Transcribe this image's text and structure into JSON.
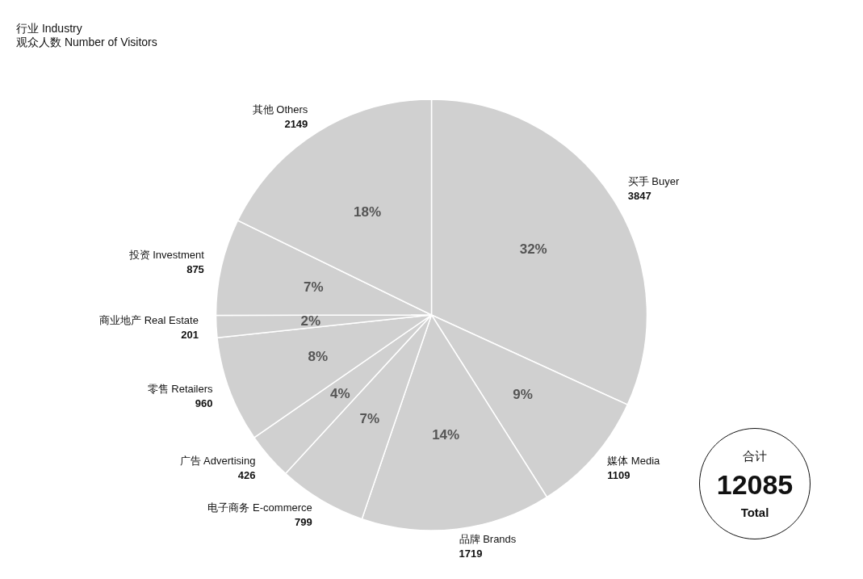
{
  "chart_data": {
    "type": "pie",
    "title": "行业 Industry",
    "subtitle": "观众人数 Number of Visitors",
    "categories": [
      "买手 Buyer",
      "媒体 Media",
      "品牌 Brands",
      "电子商务 E-commerce",
      "广告 Advertising",
      "零售 Retailers",
      "商业地产 Real Estate",
      "投资 Investment",
      "其他 Others"
    ],
    "values": [
      3847,
      1109,
      1719,
      799,
      426,
      960,
      201,
      875,
      2149
    ],
    "value_labels": [
      "3847",
      "1109",
      "1719",
      "799",
      "426",
      "960",
      "201",
      "875",
      "2149"
    ],
    "colors": [
      "#d0d0d0",
      "#d0d0d0",
      "#d0d0d0",
      "#d0d0d0",
      "#d0d0d0",
      "#d0d0d0",
      "#d0d0d0",
      "#d0d0d0",
      "#d0d0d0"
    ],
    "legend": false,
    "annotations": [
      {
        "text": "32%",
        "x": "买手 Buyer"
      },
      {
        "text": "9%",
        "x": "媒体 Media"
      },
      {
        "text": "14%",
        "x": "品牌 Brands"
      },
      {
        "text": "7%",
        "x": "电子商务 E-commerce"
      },
      {
        "text": "4%",
        "x": "广告 Advertising"
      },
      {
        "text": "8%",
        "x": "零售 Retailers"
      },
      {
        "text": "2%",
        "x": "商业地产 Real Estate"
      },
      {
        "text": "7%",
        "x": "投资 Investment"
      },
      {
        "text": "18%",
        "x": "其他 Others"
      },
      "合计",
      "12085",
      "Total"
    ]
  }
}
